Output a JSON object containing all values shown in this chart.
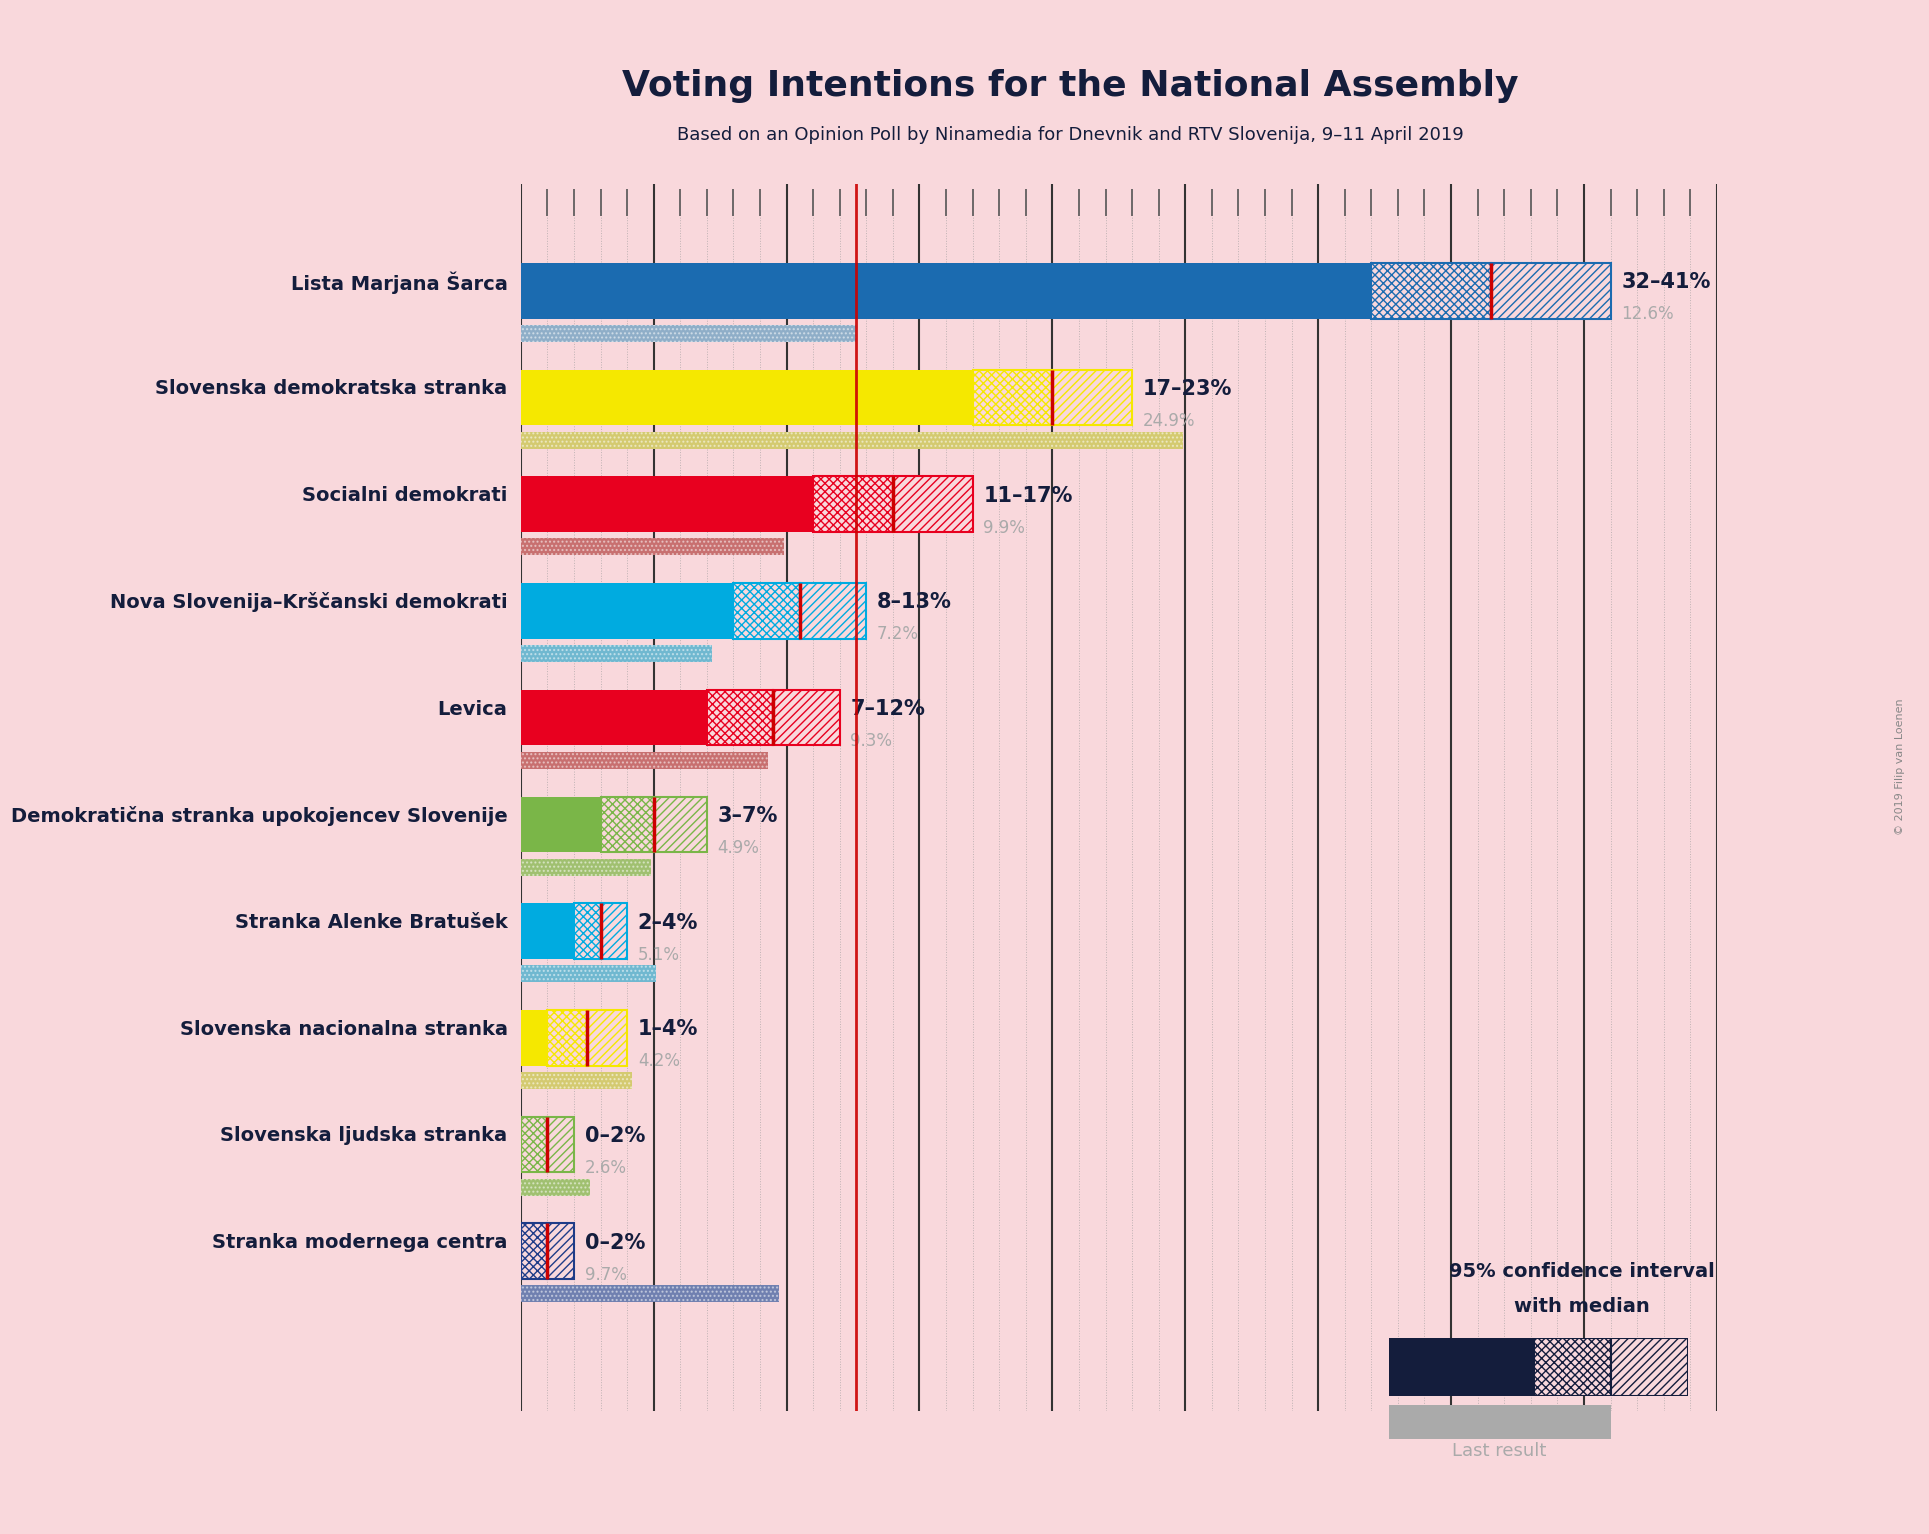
{
  "title": "Voting Intentions for the National Assembly",
  "subtitle": "Based on an Opinion Poll by Ninamedia for Dnevnik and RTV Slovenija, 9–11 April 2019",
  "background_color": "#f9d8dc",
  "parties": [
    {
      "name": "Lista Marjana Šarca",
      "ci_low": 32,
      "ci_high": 41,
      "median": 36.5,
      "last_result": 12.6,
      "color": "#1B6BB0",
      "last_color": "#8faec8",
      "label": "32–41%",
      "last_label": "12.6%"
    },
    {
      "name": "Slovenska demokratska stranka",
      "ci_low": 17,
      "ci_high": 23,
      "median": 20,
      "last_result": 24.9,
      "color": "#f5e800",
      "last_color": "#d4ca70",
      "label": "17–23%",
      "last_label": "24.9%"
    },
    {
      "name": "Socialni demokrati",
      "ci_low": 11,
      "ci_high": 17,
      "median": 14,
      "last_result": 9.9,
      "color": "#e8001f",
      "last_color": "#c87070",
      "label": "11–17%",
      "last_label": "9.9%"
    },
    {
      "name": "Nova Slovenija–Krščanski demokrati",
      "ci_low": 8,
      "ci_high": 13,
      "median": 10.5,
      "last_result": 7.2,
      "color": "#00abe0",
      "last_color": "#70b8d0",
      "label": "8–13%",
      "last_label": "7.2%"
    },
    {
      "name": "Levica",
      "ci_low": 7,
      "ci_high": 12,
      "median": 9.5,
      "last_result": 9.3,
      "color": "#e8001f",
      "last_color": "#c87070",
      "label": "7–12%",
      "last_label": "9.3%"
    },
    {
      "name": "Demokratična stranka upokojencev Slovenije",
      "ci_low": 3,
      "ci_high": 7,
      "median": 5,
      "last_result": 4.9,
      "color": "#7ab648",
      "last_color": "#a0c070",
      "label": "3–7%",
      "last_label": "4.9%"
    },
    {
      "name": "Stranka Alenke Bratušek",
      "ci_low": 2,
      "ci_high": 4,
      "median": 3,
      "last_result": 5.1,
      "color": "#00abe0",
      "last_color": "#70b8d0",
      "label": "2–4%",
      "last_label": "5.1%"
    },
    {
      "name": "Slovenska nacionalna stranka",
      "ci_low": 1,
      "ci_high": 4,
      "median": 2.5,
      "last_result": 4.2,
      "color": "#f5e800",
      "last_color": "#d4ca70",
      "label": "1–4%",
      "last_label": "4.2%"
    },
    {
      "name": "Slovenska ljudska stranka",
      "ci_low": 0,
      "ci_high": 2,
      "median": 1,
      "last_result": 2.6,
      "color": "#7ab648",
      "last_color": "#a0c070",
      "label": "0–2%",
      "last_label": "2.6%"
    },
    {
      "name": "Stranka modernega centra",
      "ci_low": 0,
      "ci_high": 2,
      "median": 1,
      "last_result": 9.7,
      "color": "#1f3c88",
      "last_color": "#7080b0",
      "label": "0–2%",
      "last_label": "9.7%"
    }
  ],
  "x_max": 45,
  "red_line_x": 12.6,
  "median_line_color": "#cc0000",
  "ci_dark_color": "#141d3c",
  "label_color": "#141d3c",
  "last_result_text_color": "#aaaaaa",
  "copyright_text": "© 2019 Filip van Loenen"
}
